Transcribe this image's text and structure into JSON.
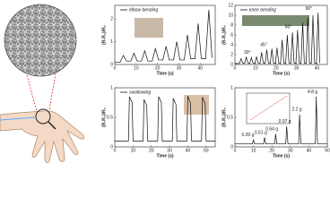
{
  "chart_data": [
    {
      "type": "line",
      "series": [
        {
          "name": "elbow bending",
          "color": "#111111",
          "x": [
            0,
            2.5,
            4,
            5.5,
            7.5,
            9,
            10.5,
            12.5,
            14,
            15.5,
            17.5,
            19,
            20.5,
            22.5,
            24,
            25.5,
            27.5,
            29,
            30.5,
            32.5,
            34,
            35.5,
            37.5,
            39,
            40.5,
            42.5,
            44,
            45.5
          ],
          "values": [
            0.1,
            0.1,
            0.4,
            0.15,
            0.15,
            0.5,
            0.15,
            0.15,
            0.6,
            0.15,
            0.15,
            0.7,
            0.2,
            0.2,
            0.8,
            0.2,
            0.2,
            1.0,
            0.2,
            0.2,
            1.3,
            0.25,
            0.25,
            1.8,
            0.25,
            0.25,
            2.4,
            0.3
          ]
        }
      ],
      "xlabel": "Time (s)",
      "ylabel": "(R-R₀)/R₀",
      "xlim": [
        0,
        47
      ],
      "xticks": [
        0,
        10,
        20,
        30,
        40
      ],
      "ylim": [
        0,
        2.6
      ],
      "yticks": [
        0,
        1,
        2
      ]
    },
    {
      "type": "line",
      "series": [
        {
          "name": "knee bending",
          "color": "#111111",
          "x": [
            0,
            2.2,
            3,
            3.8,
            4.7,
            5.5,
            6.3,
            7.2,
            8,
            8.8,
            9.7,
            10.5,
            11.3,
            12.2,
            13,
            13.8,
            14.7,
            15.5,
            16.3,
            17.2,
            18,
            18.8,
            19.7,
            20.5,
            21.3,
            22.2,
            23,
            23.8,
            24.7,
            25.5,
            26.3,
            27.2,
            28,
            28.8,
            29.7,
            30.5,
            31.3,
            32.2,
            33,
            33.8,
            34.7,
            35.5,
            36.3,
            37.2,
            38,
            38.8,
            39.7,
            40.5,
            41.3
          ],
          "values": [
            0.2,
            0.2,
            1.2,
            0.3,
            0.2,
            1.5,
            0.3,
            0.2,
            1.4,
            0.3,
            0.2,
            1.6,
            0.3,
            0.2,
            2.5,
            0.3,
            0.2,
            3.0,
            0.3,
            0.2,
            3.2,
            0.3,
            0.2,
            3.4,
            0.3,
            0.2,
            5.0,
            0.3,
            0.2,
            6.0,
            0.3,
            0.2,
            6.5,
            0.3,
            0.2,
            7.0,
            0.3,
            0.2,
            8.5,
            0.3,
            0.2,
            9.5,
            0.3,
            0.2,
            10.0,
            0.3,
            0.2,
            10.5,
            0.3
          ]
        }
      ],
      "annotations": [
        {
          "text": "30°",
          "x": 6,
          "y": 2.4
        },
        {
          "text": "45°",
          "x": 14,
          "y": 4.0
        },
        {
          "text": "60°",
          "x": 26,
          "y": 7.6
        },
        {
          "text": "90°",
          "x": 36,
          "y": 11.3
        }
      ],
      "xlabel": "Time (s)",
      "ylabel": "(R-R₀)/R₀",
      "xlim": [
        0,
        45
      ],
      "xticks": [
        0,
        10,
        20,
        30,
        40
      ],
      "ylim": [
        0,
        12
      ],
      "yticks": [
        0,
        2,
        4,
        6,
        8,
        10,
        12
      ]
    },
    {
      "type": "line",
      "series": [
        {
          "name": "swallowing",
          "color": "#111111",
          "x": [
            0,
            7.5,
            8,
            9.5,
            10,
            15.5,
            16,
            17.5,
            18,
            23.5,
            24,
            25.5,
            26,
            31.5,
            32,
            33.5,
            34,
            39.5,
            40,
            41.5,
            42,
            47.5,
            48,
            49.5,
            50,
            55
          ],
          "values": [
            0.1,
            0.1,
            0.85,
            0.75,
            0.1,
            0.1,
            0.8,
            0.7,
            0.1,
            0.1,
            0.85,
            0.75,
            0.1,
            0.1,
            0.82,
            0.72,
            0.1,
            0.1,
            0.86,
            0.74,
            0.1,
            0.1,
            0.84,
            0.73,
            0.1,
            0.1
          ]
        }
      ],
      "xlabel": "Time (s)",
      "ylabel": "(R-R₀)/R₀",
      "xlim": [
        0,
        55
      ],
      "xticks": [
        0,
        10,
        20,
        30,
        40,
        50
      ],
      "ylim": [
        0,
        1
      ],
      "yticks": [
        0,
        0.5,
        1
      ]
    },
    {
      "type": "line",
      "series": [
        {
          "color": "#111111",
          "x": [
            0,
            9.5,
            10,
            10.7,
            15.5,
            16,
            16.7,
            21.5,
            22,
            22.7,
            27.5,
            28,
            28.7,
            34.5,
            35,
            35.7,
            43.5,
            44,
            44.7,
            50
          ],
          "values": [
            0.05,
            0.05,
            0.12,
            0.05,
            0.05,
            0.16,
            0.05,
            0.05,
            0.22,
            0.05,
            0.05,
            0.35,
            0.05,
            0.05,
            0.55,
            0.05,
            0.05,
            0.85,
            0.05,
            0.05
          ]
        }
      ],
      "annotations": [
        {
          "text": "0.39 g",
          "x": 7,
          "y": 0.2
        },
        {
          "text": "0.51 g",
          "x": 14,
          "y": 0.24
        },
        {
          "text": "0.64 g",
          "x": 20,
          "y": 0.3
        },
        {
          "text": "0.97 g",
          "x": 27,
          "y": 0.43
        },
        {
          "text": "2.2 g",
          "x": 33.5,
          "y": 0.63
        },
        {
          "text": "4.8 g",
          "x": 42,
          "y": 0.93
        }
      ],
      "xlabel": "Time (s)",
      "ylabel": "(R-R₀)/R₀",
      "xlim": [
        0,
        50
      ],
      "xticks": [
        0,
        10,
        20,
        30,
        40,
        50
      ],
      "ylim": [
        0,
        1
      ],
      "yticks": [
        0,
        0.5,
        1
      ]
    }
  ]
}
